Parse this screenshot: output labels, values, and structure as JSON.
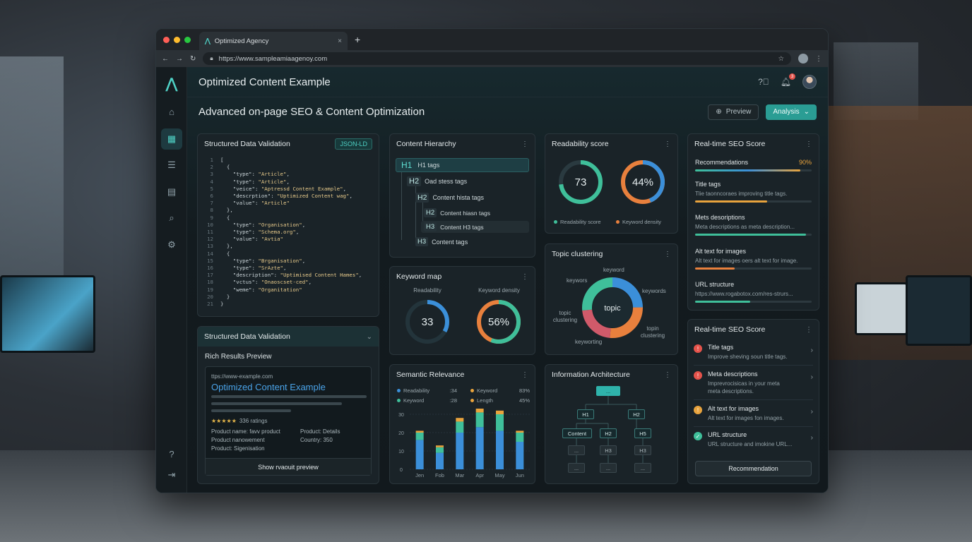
{
  "browser": {
    "tab_title": "Optimized Agency",
    "tab_close": "×",
    "new_tab": "+",
    "url": "https://www.sampleamiaagenoy.com"
  },
  "header": {
    "title": "Optimized Content Example",
    "subtitle": "Advanced on-page SEO & Content Optimization",
    "notification_count": "3",
    "preview_label": "Preview",
    "analysis_label": "Analysis"
  },
  "sidebar": {
    "items": [
      "home-icon",
      "grid-icon",
      "list-icon",
      "report-icon",
      "search-icon",
      "settings-icon"
    ],
    "bottom": [
      "help-icon",
      "logout-icon"
    ]
  },
  "structured_data": {
    "title": "Structured Data Validation",
    "tag": "JSON-LD",
    "lines": [
      "[",
      "  {",
      "    \"type\": \"Article\",",
      "    \"type\": \"Article\",",
      "    \"veice\": \"Aptressd Content Example\",",
      "    \"descrption\": \"Uptimized Content wag\",",
      "    \"value\": \"Article\"",
      "  },",
      "  {",
      "    \"type\": \"Organisation\",",
      "    \"type\": \"Schema.org\",",
      "    \"value\": \"Avtia\"",
      "  },",
      "  {",
      "    \"type\": \"Brganisation\",",
      "    \"type\": \"SrAzte\",",
      "    \"description\": \"Uptimised Content Hames\",",
      "    \"vctus\": \"Onaoscset-ced\",",
      "    \"weme\": \"Organitation\"",
      "  }",
      "}"
    ]
  },
  "rich_results": {
    "title": "Structured Data Validation",
    "chevron": "⌄",
    "subtitle": "Rich Results Preview",
    "url": "ttps://www-example.com",
    "result_title": "Optimized Content Example",
    "stars": "★★★★★",
    "ratings": "336 ratings",
    "product_left": [
      "Product name: favv product",
      "Product nanowement",
      "Product: Sigenisation"
    ],
    "product_right": [
      "Product: Details",
      "Country: 350"
    ],
    "button": "Show rvaouit preview"
  },
  "hierarchy": {
    "title": "Content Hierarchy",
    "rows": [
      {
        "tag": "H1",
        "label": "H1 tags"
      },
      {
        "tag": "H2",
        "label": "Oad stess tags"
      },
      {
        "tag": "H2",
        "label": "Content hista tags"
      },
      {
        "tag": "H2",
        "label": "Content hiasn tags"
      },
      {
        "tag": "H3",
        "label": "Content H3 tags"
      },
      {
        "tag": "H3",
        "label": "Content tags"
      }
    ]
  },
  "keyword_map": {
    "title": "Keyword map",
    "left_label": "Readability",
    "left_value": "33",
    "left_pct": 33,
    "right_label": "Keyword density",
    "right_value": "56%",
    "right_pct": 56
  },
  "semantic": {
    "title": "Semantic Relevance",
    "legend": [
      {
        "name": "Readability",
        "value": ":34",
        "color": "#3b8fd9"
      },
      {
        "name": "Keyword",
        "value": "83%",
        "color": "#e8a33d"
      },
      {
        "name": "Keyword",
        "value": ":28",
        "color": "#3fbf9a"
      },
      {
        "name": "Length",
        "value": "45%",
        "color": "#e8a33d"
      }
    ]
  },
  "chart_data": {
    "type": "bar",
    "categories": [
      "Jen",
      "Fob",
      "Mar",
      "Apr",
      "May",
      "Jun"
    ],
    "yticks": [
      "30",
      "20",
      "10",
      "0"
    ],
    "ylim": [
      0,
      30
    ],
    "series": [
      {
        "values": [
          16,
          9,
          20,
          23,
          21,
          15
        ],
        "color": "#3b8fd9"
      },
      {
        "values": [
          4,
          3,
          6,
          8,
          9,
          5
        ],
        "color": "#3fbf9a"
      },
      {
        "values": [
          1,
          1,
          2,
          3,
          2,
          1
        ],
        "color": "#e8a33d"
      }
    ]
  },
  "readability": {
    "title": "Readability score",
    "score": "73",
    "score_pct": 73,
    "density": "44%",
    "density_pct": 44,
    "legend_score": "Readability score",
    "legend_density": "Keyword density"
  },
  "topic": {
    "title": "Topic clustering",
    "center": "topic",
    "labels": [
      "keyword",
      "keywors",
      "keywords",
      "topic clustering",
      "topin clustering",
      "keyworting"
    ]
  },
  "info_arch": {
    "title": "Information Architecture",
    "top": "...",
    "level1": [
      "H1",
      "H2"
    ],
    "level2": [
      "Content",
      "H2",
      "H5"
    ],
    "level3": [
      "...",
      "H3",
      "H3"
    ],
    "level4": [
      "...",
      "...",
      "..."
    ]
  },
  "seo_score": {
    "title": "Real-time SEO Score",
    "recommendations_label": "Recommendations",
    "recommendations_value": "90%",
    "recommendations_pct": 0.9,
    "rows": [
      {
        "title": "Title tags",
        "sub": "Tlie taonncoraes improving title tags.",
        "pct": 0.62,
        "color": "#e8a33d"
      },
      {
        "title": "Mets desoriptions",
        "sub": "Meta descriptions as meta description...",
        "pct": 0.95,
        "color": "#3fbf9a"
      },
      {
        "title": "Alt text for images",
        "sub": "Alt text for images oers alt text for image.",
        "pct": 0.34,
        "color": "#e8803d"
      },
      {
        "title": "URL structure",
        "sub": "https://www.rogabotox.com/res-strurs...",
        "pct": 0.47,
        "color": "#3fbf9a"
      }
    ]
  },
  "seo_list": {
    "title": "Real-time SEO Score",
    "rows": [
      {
        "title": "Title tags",
        "sub": "Improve sheving soun title tags.",
        "status": "!",
        "color": "#e5534b"
      },
      {
        "title": "Meta descriptions",
        "sub": "Imprevrocisicas in your meta meta descriptions.",
        "status": "!",
        "color": "#e5534b"
      },
      {
        "title": "Alt text for images",
        "sub": "Alt text for images fon images.",
        "status": "!",
        "color": "#e8a33d"
      },
      {
        "title": "URL structure",
        "sub": "URL structure and imokine URL...",
        "status": "✓",
        "color": "#3fbf9a"
      }
    ],
    "button": "Recommendation"
  },
  "colors": {
    "accent": "#4fd1c5",
    "blue": "#3b8fd9",
    "orange": "#e8803d",
    "green": "#3fbf9a"
  }
}
